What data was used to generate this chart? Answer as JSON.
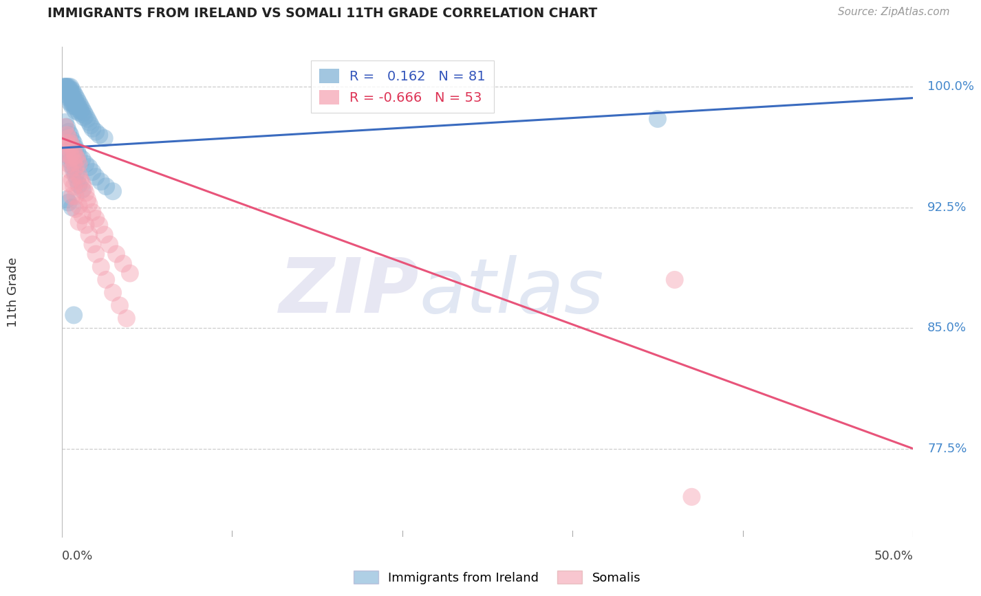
{
  "title": "IMMIGRANTS FROM IRELAND VS SOMALI 11TH GRADE CORRELATION CHART",
  "source": "Source: ZipAtlas.com",
  "ylabel": "11th Grade",
  "ytick_labels": [
    "100.0%",
    "92.5%",
    "85.0%",
    "77.5%"
  ],
  "ytick_values": [
    1.0,
    0.925,
    0.85,
    0.775
  ],
  "xlim": [
    0.0,
    0.5
  ],
  "ylim": [
    0.72,
    1.025
  ],
  "ireland_color": "#7bafd4",
  "somali_color": "#f4a0b0",
  "ireland_line_color": "#3a6bbf",
  "somali_line_color": "#e8547a",
  "grid_color": "#cccccc",
  "background_color": "#ffffff",
  "ireland_R": 0.162,
  "ireland_N": 81,
  "somali_R": -0.666,
  "somali_N": 53,
  "ireland_line_x0": 0.0,
  "ireland_line_y0": 0.962,
  "ireland_line_x1": 0.5,
  "ireland_line_y1": 0.993,
  "somali_line_x0": 0.0,
  "somali_line_y0": 0.968,
  "somali_line_x1": 0.5,
  "somali_line_y1": 0.775,
  "ireland_scatter_x": [
    0.001,
    0.002,
    0.002,
    0.002,
    0.003,
    0.003,
    0.003,
    0.003,
    0.004,
    0.004,
    0.004,
    0.004,
    0.005,
    0.005,
    0.005,
    0.005,
    0.005,
    0.006,
    0.006,
    0.006,
    0.006,
    0.006,
    0.007,
    0.007,
    0.007,
    0.007,
    0.008,
    0.008,
    0.008,
    0.008,
    0.009,
    0.009,
    0.009,
    0.01,
    0.01,
    0.01,
    0.011,
    0.011,
    0.012,
    0.012,
    0.013,
    0.013,
    0.014,
    0.015,
    0.016,
    0.017,
    0.018,
    0.02,
    0.022,
    0.025,
    0.002,
    0.003,
    0.004,
    0.005,
    0.006,
    0.007,
    0.008,
    0.009,
    0.01,
    0.012,
    0.014,
    0.016,
    0.018,
    0.02,
    0.023,
    0.026,
    0.03,
    0.003,
    0.004,
    0.005,
    0.006,
    0.007,
    0.008,
    0.009,
    0.01,
    0.012,
    0.35,
    0.003,
    0.004,
    0.006,
    0.007
  ],
  "ireland_scatter_y": [
    1.0,
    1.0,
    1.0,
    0.998,
    1.0,
    1.0,
    0.998,
    0.995,
    1.0,
    0.998,
    0.996,
    0.993,
    1.0,
    0.998,
    0.996,
    0.993,
    0.99,
    0.998,
    0.996,
    0.993,
    0.99,
    0.988,
    0.996,
    0.993,
    0.99,
    0.988,
    0.994,
    0.991,
    0.988,
    0.985,
    0.992,
    0.989,
    0.986,
    0.99,
    0.987,
    0.984,
    0.988,
    0.985,
    0.986,
    0.983,
    0.984,
    0.981,
    0.982,
    0.98,
    0.978,
    0.976,
    0.974,
    0.972,
    0.97,
    0.968,
    0.978,
    0.975,
    0.972,
    0.97,
    0.967,
    0.965,
    0.962,
    0.96,
    0.957,
    0.955,
    0.952,
    0.95,
    0.947,
    0.944,
    0.941,
    0.938,
    0.935,
    0.96,
    0.957,
    0.954,
    0.951,
    0.948,
    0.945,
    0.942,
    0.939,
    0.936,
    0.98,
    0.93,
    0.928,
    0.925,
    0.858
  ],
  "somali_scatter_x": [
    0.002,
    0.003,
    0.003,
    0.004,
    0.004,
    0.005,
    0.005,
    0.006,
    0.006,
    0.007,
    0.007,
    0.008,
    0.008,
    0.009,
    0.01,
    0.01,
    0.011,
    0.012,
    0.013,
    0.014,
    0.015,
    0.016,
    0.018,
    0.02,
    0.022,
    0.025,
    0.028,
    0.032,
    0.036,
    0.04,
    0.003,
    0.004,
    0.005,
    0.006,
    0.007,
    0.008,
    0.01,
    0.012,
    0.014,
    0.016,
    0.018,
    0.02,
    0.023,
    0.026,
    0.03,
    0.034,
    0.038,
    0.004,
    0.006,
    0.008,
    0.01,
    0.36,
    0.37
  ],
  "somali_scatter_y": [
    0.975,
    0.97,
    0.965,
    0.968,
    0.962,
    0.965,
    0.958,
    0.963,
    0.956,
    0.96,
    0.953,
    0.957,
    0.95,
    0.955,
    0.952,
    0.945,
    0.942,
    0.94,
    0.937,
    0.934,
    0.93,
    0.927,
    0.922,
    0.918,
    0.914,
    0.908,
    0.902,
    0.896,
    0.89,
    0.884,
    0.958,
    0.952,
    0.948,
    0.942,
    0.938,
    0.932,
    0.926,
    0.92,
    0.914,
    0.908,
    0.902,
    0.896,
    0.888,
    0.88,
    0.872,
    0.864,
    0.856,
    0.94,
    0.932,
    0.924,
    0.916,
    0.88,
    0.745
  ]
}
